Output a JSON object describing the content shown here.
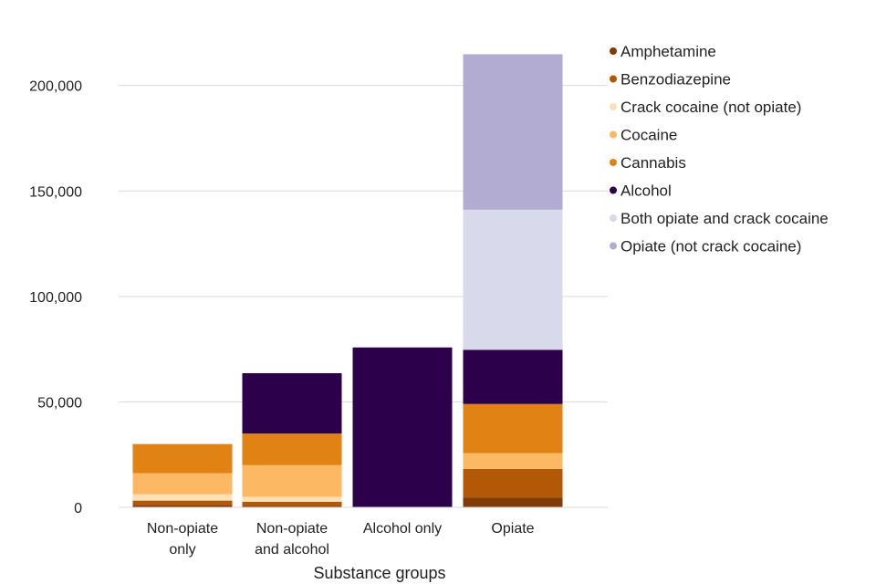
{
  "chart_data": {
    "type": "stacked-bar",
    "title": "",
    "xlabel": "Substance groups",
    "ylabel": "",
    "ylim": [
      0,
      215000
    ],
    "yticks": [
      0,
      50000,
      100000,
      150000,
      200000
    ],
    "ytick_labels": [
      "0",
      "50,000",
      "100,000",
      "150,000",
      "200,000"
    ],
    "grid": true,
    "legend_position": "right",
    "categories": [
      [
        "Non-opiate",
        "only"
      ],
      [
        "Non-opiate",
        "and alcohol"
      ],
      [
        "Alcohol only"
      ],
      [
        "Opiate"
      ]
    ],
    "series": [
      {
        "name": "Amphetamine",
        "color": "#7f3b08",
        "values": [
          1200,
          800,
          0,
          4700
        ]
      },
      {
        "name": "Benzodiazepine",
        "color": "#b35806",
        "values": [
          2000,
          1800,
          0,
          13500
        ]
      },
      {
        "name": "Crack cocaine (not opiate)",
        "color": "#fee0b6",
        "values": [
          3000,
          2400,
          0,
          0
        ]
      },
      {
        "name": "Cocaine",
        "color": "#fdb863",
        "values": [
          10000,
          15000,
          0,
          7500
        ]
      },
      {
        "name": "Cannabis",
        "color": "#e08214",
        "values": [
          13800,
          15000,
          0,
          23300
        ]
      },
      {
        "name": "Alcohol",
        "color": "#2d004b",
        "values": [
          0,
          28600,
          75800,
          25700
        ]
      },
      {
        "name": "Both opiate and crack cocaine",
        "color": "#d8daeb",
        "values": [
          0,
          0,
          0,
          66400
        ]
      },
      {
        "name": "Opiate (not crack cocaine)",
        "color": "#b2abd2",
        "values": [
          0,
          0,
          0,
          73700
        ]
      }
    ]
  }
}
